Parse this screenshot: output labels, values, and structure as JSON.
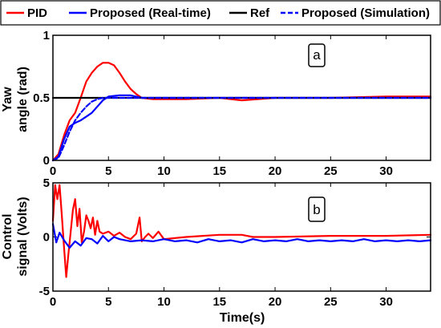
{
  "chart_data": [
    {
      "type": "line",
      "panel_tag": "a",
      "ylabel_lines": [
        "Yaw",
        "angle (rad)"
      ],
      "xlim": [
        0,
        34
      ],
      "ylim": [
        0,
        1
      ],
      "xticks": [
        0,
        5,
        10,
        15,
        20,
        25,
        30
      ],
      "yticks": [
        0,
        0.5,
        1
      ],
      "ytick_labels": [
        "0",
        "0.5",
        "1"
      ],
      "legend_position": "top",
      "series": [
        {
          "name": "PID",
          "color": "#ff0000",
          "dash": "solid",
          "x": [
            0,
            0.5,
            1,
            1.5,
            2,
            2.5,
            3,
            3.5,
            4,
            4.5,
            5,
            5.5,
            6,
            6.5,
            7,
            7.5,
            8,
            9,
            10,
            12,
            15,
            17,
            20,
            25,
            30,
            34
          ],
          "y": [
            0,
            0.05,
            0.2,
            0.32,
            0.38,
            0.5,
            0.63,
            0.7,
            0.75,
            0.78,
            0.78,
            0.76,
            0.7,
            0.63,
            0.57,
            0.53,
            0.5,
            0.49,
            0.49,
            0.49,
            0.5,
            0.48,
            0.5,
            0.5,
            0.51,
            0.51
          ]
        },
        {
          "name": "Proposed (Real-time)",
          "color": "#0000ff",
          "dash": "solid",
          "x": [
            0,
            0.5,
            1,
            1.5,
            2,
            2.5,
            3,
            3.5,
            4,
            4.5,
            5,
            6,
            7,
            8,
            9,
            10,
            15,
            20,
            25,
            30,
            34
          ],
          "y": [
            0,
            0.03,
            0.17,
            0.27,
            0.3,
            0.32,
            0.35,
            0.38,
            0.43,
            0.48,
            0.51,
            0.52,
            0.52,
            0.5,
            0.5,
            0.5,
            0.5,
            0.5,
            0.5,
            0.5,
            0.5
          ]
        },
        {
          "name": "Ref",
          "color": "#000000",
          "dash": "solid",
          "x": [
            0,
            34
          ],
          "y": [
            0.5,
            0.5
          ]
        },
        {
          "name": "Proposed (Simulation)",
          "color": "#0000ff",
          "dash": "dashed",
          "x": [
            0,
            0.5,
            1,
            1.5,
            2,
            2.5,
            3,
            3.5,
            4,
            4.5,
            5,
            6,
            7,
            8,
            10,
            15,
            20,
            25,
            30,
            34
          ],
          "y": [
            0,
            0.02,
            0.12,
            0.23,
            0.32,
            0.38,
            0.43,
            0.47,
            0.49,
            0.5,
            0.5,
            0.5,
            0.5,
            0.5,
            0.5,
            0.5,
            0.5,
            0.5,
            0.5,
            0.5
          ]
        }
      ]
    },
    {
      "type": "line",
      "panel_tag": "b",
      "ylabel_lines": [
        "Control",
        "signal (Volts)"
      ],
      "xlabel": "Time(s)",
      "xlim": [
        0,
        34
      ],
      "ylim": [
        -5,
        5
      ],
      "xticks": [
        0,
        5,
        10,
        15,
        20,
        25,
        30
      ],
      "yticks": [
        -5,
        0,
        5
      ],
      "ytick_labels": [
        "-5",
        "0",
        "5"
      ],
      "series": [
        {
          "name": "PID",
          "color": "#ff0000",
          "dash": "solid",
          "x": [
            0,
            0.2,
            0.4,
            0.6,
            0.8,
            1.0,
            1.2,
            1.4,
            1.6,
            1.8,
            2.0,
            2.2,
            2.4,
            2.6,
            2.8,
            3.0,
            3.2,
            3.4,
            3.6,
            3.8,
            4.0,
            4.2,
            4.5,
            5,
            5.5,
            6,
            6.5,
            7,
            7.5,
            7.8,
            8,
            8.3,
            8.6,
            9,
            9.5,
            10,
            12,
            15,
            17,
            18,
            20,
            25,
            30,
            34
          ],
          "y": [
            1.5,
            4.8,
            3.5,
            4.8,
            2.0,
            -1.0,
            -3.7,
            -1.5,
            0.5,
            2.5,
            3.5,
            1.0,
            2.6,
            -0.5,
            0.5,
            2.0,
            1.5,
            0.8,
            1.8,
            0.2,
            1.5,
            0.5,
            0.3,
            0.5,
            0.1,
            0.4,
            0.0,
            -0.2,
            0.3,
            1.8,
            -0.4,
            0.0,
            0.3,
            -0.1,
            0.5,
            -0.2,
            0.0,
            0.2,
            0.2,
            0.0,
            0.0,
            0.1,
            0.1,
            0.2
          ]
        },
        {
          "name": "Proposed (Real-time)",
          "color": "#0000ff",
          "dash": "solid",
          "x": [
            0,
            0.3,
            0.6,
            1.0,
            1.5,
            2.0,
            2.5,
            3.0,
            3.5,
            4.0,
            4.5,
            5,
            5.5,
            6,
            7,
            8,
            9,
            10,
            11,
            12,
            13,
            14,
            15,
            16,
            17,
            18,
            19,
            20,
            21,
            22,
            23,
            24,
            25,
            26,
            27,
            28,
            29,
            30,
            31,
            32,
            33,
            34
          ],
          "y": [
            1.2,
            -0.5,
            0.4,
            -0.3,
            -1.0,
            -0.4,
            -0.8,
            -0.1,
            -0.2,
            -0.6,
            0.1,
            -0.4,
            0.0,
            -0.2,
            -0.4,
            -0.3,
            -0.4,
            -0.2,
            -0.4,
            -0.3,
            -0.5,
            -0.2,
            -0.4,
            -0.3,
            -0.5,
            -0.2,
            -0.4,
            -0.3,
            -0.4,
            -0.2,
            -0.4,
            -0.3,
            -0.4,
            -0.3,
            -0.4,
            -0.2,
            -0.4,
            -0.3,
            -0.4,
            -0.3,
            -0.4,
            -0.3
          ]
        }
      ]
    }
  ]
}
